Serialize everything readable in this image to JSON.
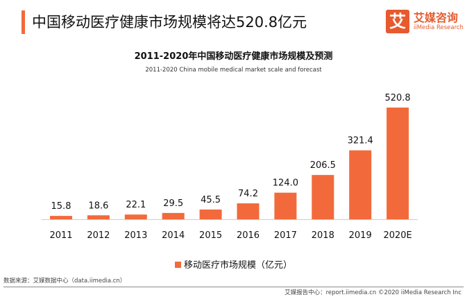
{
  "header": {
    "title": "中国移动医疗健康市场规模将达520.8亿元"
  },
  "logo": {
    "mark": "艾",
    "name": "艾媒咨询",
    "name_en": "iiMedia Research"
  },
  "colors": {
    "accent": "#f26a3b",
    "bar": "#f26a3b"
  },
  "chart_data": {
    "type": "bar",
    "title": "2011-2020年中国移动医疗健康市场规模及预测",
    "subtitle": "2011-2020 China mobile medical market scale and forecast",
    "categories": [
      "2011",
      "2012",
      "2013",
      "2014",
      "2015",
      "2016",
      "2017",
      "2018",
      "2019",
      "2020E"
    ],
    "series": [
      {
        "name": "移动医疗市场规模（亿元）",
        "values": [
          15.8,
          18.6,
          22.1,
          29.5,
          45.5,
          74.2,
          124.0,
          206.5,
          321.4,
          520.8
        ]
      }
    ],
    "labels": [
      "15.8",
      "18.6",
      "22.1",
      "29.5",
      "45.5",
      "74.2",
      "124.0",
      "206.5",
      "321.4",
      "520.8"
    ],
    "ylim": [
      0,
      520.8
    ],
    "grid": false,
    "legend": "bottom"
  },
  "footer": {
    "source": "数据来源：艾媒数据中心（data.iimedia.cn）",
    "report": "艾媒报告中心：report.iimedia.cn  ©2020  iiMedia Research  Inc"
  }
}
